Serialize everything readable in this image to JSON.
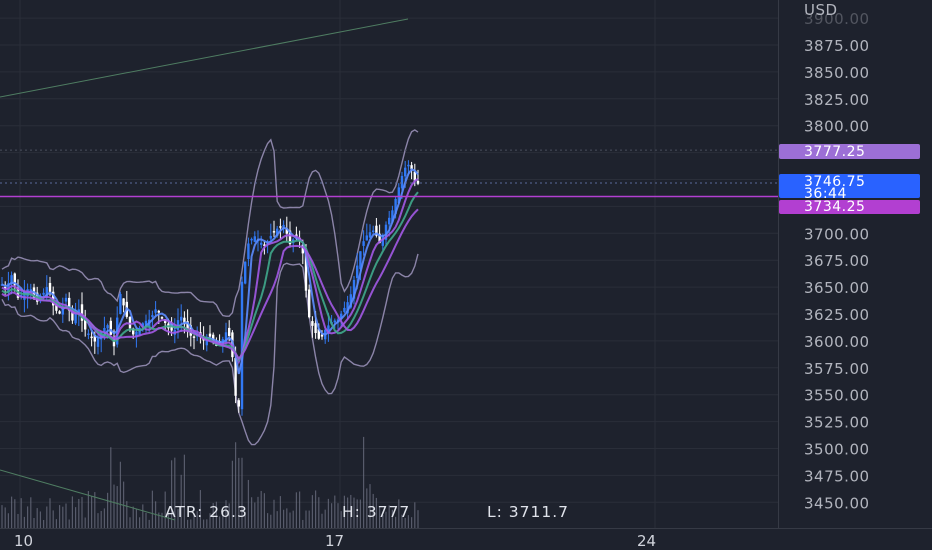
{
  "axis": {
    "currency": "USD"
  },
  "price_tags": {
    "high": {
      "value": "3777.25",
      "color": "#9c6fd6"
    },
    "last": {
      "value": "3746.75",
      "countdown": "36:44",
      "color": "#2962ff"
    },
    "level": {
      "value": "3734.25",
      "color": "#b23fd1"
    }
  },
  "indicator": {
    "atr": "ATR: 26.3",
    "high": "H: 3777",
    "low": "L: 3711.7"
  },
  "colors": {
    "background": "#1e222d",
    "grid": "#2a2e39",
    "up_candle": "#3179f5",
    "down_candle": "#ffffff",
    "band": "#8b84a8",
    "ma_purple": "#a259e6",
    "ma_blue": "#5b8cff",
    "ma_teal": "#3fa88c",
    "level_line": "#b23fd1",
    "trendline": "#4f7d62",
    "volume": "#6b6f80"
  },
  "chart_data": {
    "type": "candlestick",
    "y_axis": {
      "ticks": [
        "3900.00",
        "3875.00",
        "3850.00",
        "3825.00",
        "3800.00",
        "3775.00",
        "3750.00",
        "3725.00",
        "3700.00",
        "3675.00",
        "3650.00",
        "3625.00",
        "3600.00",
        "3575.00",
        "3550.00",
        "3525.00",
        "3500.00",
        "3475.00",
        "3450.00"
      ],
      "range": [
        3425,
        3910
      ]
    },
    "x_axis": {
      "tick_labels": [
        "10",
        "17",
        "24"
      ]
    },
    "horizontal_level": 3734.25,
    "high_marker": 3777.25,
    "last_price": 3746.75,
    "series_path": [
      [
        0,
        3655
      ],
      [
        6,
        3648
      ],
      [
        12,
        3662
      ],
      [
        18,
        3640
      ],
      [
        24,
        3645
      ],
      [
        30,
        3650
      ],
      [
        36,
        3635
      ],
      [
        42,
        3642
      ],
      [
        48,
        3652
      ],
      [
        54,
        3630
      ],
      [
        60,
        3625
      ],
      [
        66,
        3640
      ],
      [
        72,
        3618
      ],
      [
        78,
        3632
      ],
      [
        84,
        3612
      ],
      [
        90,
        3605
      ],
      [
        96,
        3598
      ],
      [
        102,
        3610
      ],
      [
        108,
        3615
      ],
      [
        114,
        3595
      ],
      [
        120,
        3645
      ],
      [
        126,
        3625
      ],
      [
        132,
        3605
      ],
      [
        138,
        3610
      ],
      [
        144,
        3618
      ],
      [
        150,
        3620
      ],
      [
        156,
        3630
      ],
      [
        162,
        3622
      ],
      [
        168,
        3612
      ],
      [
        174,
        3608
      ],
      [
        180,
        3625
      ],
      [
        186,
        3612
      ],
      [
        192,
        3603
      ],
      [
        198,
        3606
      ],
      [
        204,
        3600
      ],
      [
        210,
        3604
      ],
      [
        216,
        3595
      ],
      [
        222,
        3600
      ],
      [
        228,
        3612
      ],
      [
        234,
        3575
      ],
      [
        238,
        3510
      ],
      [
        242,
        3655
      ],
      [
        248,
        3690
      ],
      [
        254,
        3698
      ],
      [
        260,
        3692
      ],
      [
        266,
        3688
      ],
      [
        272,
        3700
      ],
      [
        278,
        3705
      ],
      [
        284,
        3708
      ],
      [
        290,
        3690
      ],
      [
        296,
        3698
      ],
      [
        302,
        3690
      ],
      [
        308,
        3625
      ],
      [
        314,
        3610
      ],
      [
        320,
        3600
      ],
      [
        326,
        3612
      ],
      [
        332,
        3618
      ],
      [
        338,
        3620
      ],
      [
        344,
        3630
      ],
      [
        350,
        3640
      ],
      [
        356,
        3665
      ],
      [
        362,
        3690
      ],
      [
        368,
        3700
      ],
      [
        374,
        3703
      ],
      [
        380,
        3690
      ],
      [
        386,
        3708
      ],
      [
        392,
        3720
      ],
      [
        398,
        3740
      ],
      [
        404,
        3760
      ],
      [
        410,
        3765
      ],
      [
        416,
        3745
      ],
      [
        420,
        3747
      ]
    ],
    "indicator": {
      "name": "ATR",
      "value": 26.3,
      "high": 3777,
      "low": 3711.7
    }
  }
}
